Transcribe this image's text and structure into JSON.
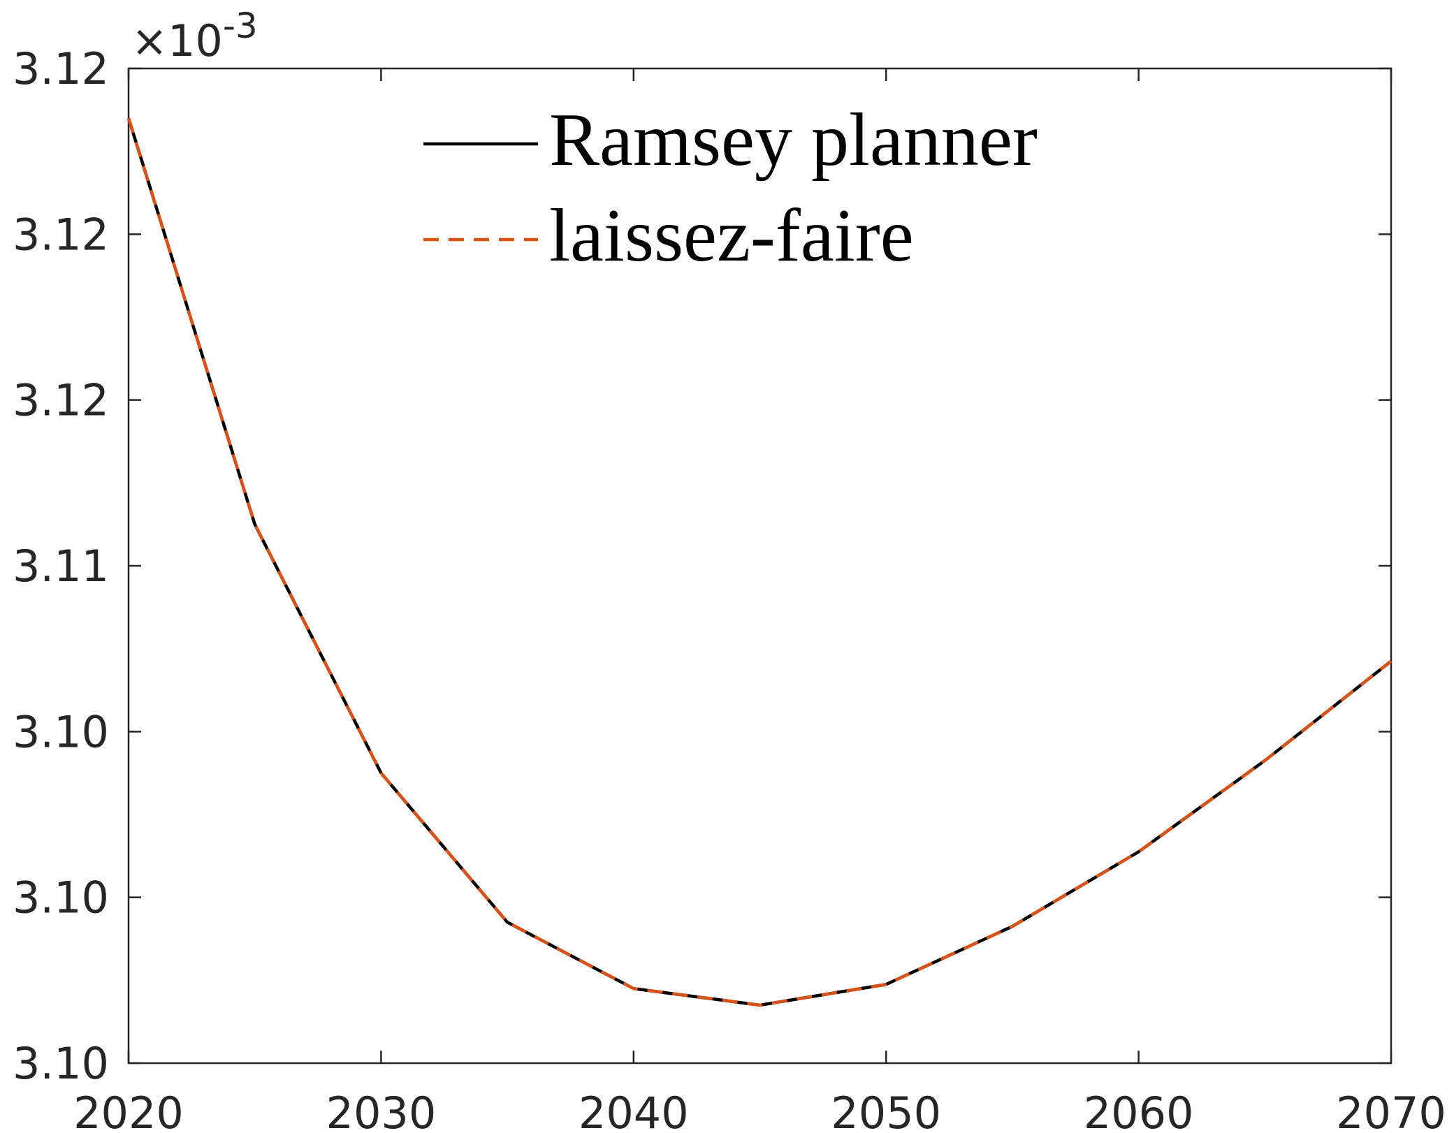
{
  "chart_data": {
    "type": "line",
    "y_multiplier": "×10",
    "y_multiplier_exponent": "-3",
    "x": [
      2020,
      2025,
      2030,
      2035,
      2040,
      2045,
      2050,
      2055,
      2060,
      2065,
      2070
    ],
    "series": [
      {
        "name": "Ramsey planner",
        "color": "#000000",
        "dash": "solid",
        "values": [
          3.1208,
          3.111,
          3.105,
          3.1014,
          3.0998,
          3.0994,
          3.0999,
          3.1013,
          3.1031,
          3.1053,
          3.1077
        ]
      },
      {
        "name": "laissez-faire",
        "color": "#d95319",
        "dash": "dashed",
        "values": [
          3.1208,
          3.111,
          3.105,
          3.1014,
          3.0998,
          3.0994,
          3.0999,
          3.1013,
          3.1031,
          3.1053,
          3.1077
        ]
      }
    ],
    "xlim": [
      2020,
      2070
    ],
    "xticks": [
      2020,
      2030,
      2040,
      2050,
      2060,
      2070
    ],
    "ylim": [
      3.098,
      3.122
    ],
    "yticks": [
      {
        "value": 3.098,
        "label": "3.10"
      },
      {
        "value": 3.102,
        "label": "3.10"
      },
      {
        "value": 3.106,
        "label": "3.10"
      },
      {
        "value": 3.11,
        "label": "3.11"
      },
      {
        "value": 3.114,
        "label": "3.12"
      },
      {
        "value": 3.118,
        "label": "3.12"
      },
      {
        "value": 3.122,
        "label": "3.12"
      }
    ],
    "grid": false
  }
}
